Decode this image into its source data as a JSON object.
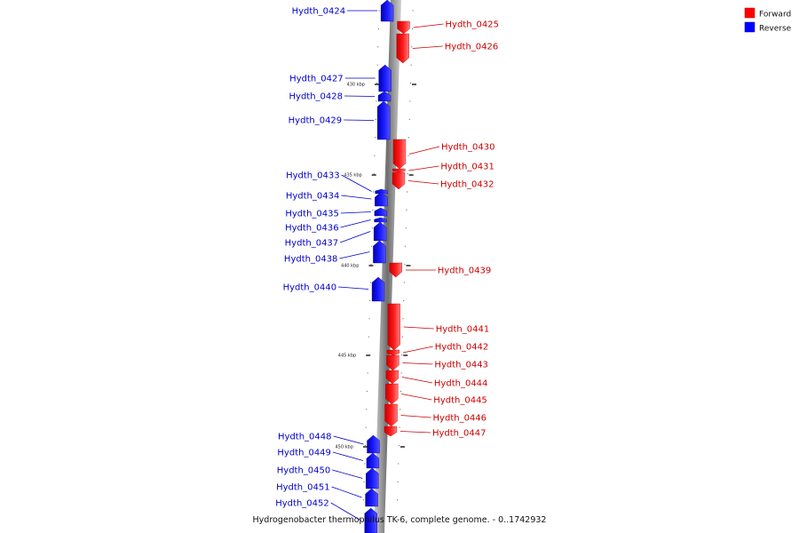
{
  "caption": "Hydrogenobacter thermophilus TK-6, complete genome. - 0..1742932",
  "legend": [
    {
      "label": "Forward",
      "color": "#ff0000"
    },
    {
      "label": "Reverse",
      "color": "#0000ff"
    }
  ],
  "colors": {
    "forward": "#ff0000",
    "reverse": "#0000ff",
    "forward_label": "#cc0000",
    "reverse_label": "#0000cc",
    "backbone": "#888888"
  },
  "scale_ticks": [
    {
      "kbp": 430,
      "label": "430 kbp"
    },
    {
      "kbp": 435,
      "label": "435 kbp"
    },
    {
      "kbp": 440,
      "label": "440 kbp"
    },
    {
      "kbp": 445,
      "label": "445 kbp"
    },
    {
      "kbp": 450,
      "label": "450 kbp"
    }
  ],
  "genes": [
    {
      "name": "Hydth_0424",
      "strand": "reverse"
    },
    {
      "name": "Hydth_0425",
      "strand": "forward"
    },
    {
      "name": "Hydth_0426",
      "strand": "forward"
    },
    {
      "name": "Hydth_0427",
      "strand": "reverse"
    },
    {
      "name": "Hydth_0428",
      "strand": "reverse"
    },
    {
      "name": "Hydth_0429",
      "strand": "reverse"
    },
    {
      "name": "Hydth_0430",
      "strand": "forward"
    },
    {
      "name": "Hydth_0431",
      "strand": "forward"
    },
    {
      "name": "Hydth_0432",
      "strand": "forward"
    },
    {
      "name": "Hydth_0433",
      "strand": "reverse"
    },
    {
      "name": "Hydth_0434",
      "strand": "reverse"
    },
    {
      "name": "Hydth_0435",
      "strand": "reverse"
    },
    {
      "name": "Hydth_0436",
      "strand": "reverse"
    },
    {
      "name": "Hydth_0437",
      "strand": "reverse"
    },
    {
      "name": "Hydth_0438",
      "strand": "reverse"
    },
    {
      "name": "Hydth_0439",
      "strand": "forward"
    },
    {
      "name": "Hydth_0440",
      "strand": "reverse"
    },
    {
      "name": "Hydth_0441",
      "strand": "forward"
    },
    {
      "name": "Hydth_0442",
      "strand": "forward"
    },
    {
      "name": "Hydth_0443",
      "strand": "forward"
    },
    {
      "name": "Hydth_0444",
      "strand": "forward"
    },
    {
      "name": "Hydth_0445",
      "strand": "forward"
    },
    {
      "name": "Hydth_0446",
      "strand": "forward"
    },
    {
      "name": "Hydth_0447",
      "strand": "forward"
    },
    {
      "name": "Hydth_0448",
      "strand": "reverse"
    },
    {
      "name": "Hydth_0449",
      "strand": "reverse"
    },
    {
      "name": "Hydth_0450",
      "strand": "reverse"
    },
    {
      "name": "Hydth_0451",
      "strand": "reverse"
    },
    {
      "name": "Hydth_0452",
      "strand": "reverse"
    }
  ]
}
